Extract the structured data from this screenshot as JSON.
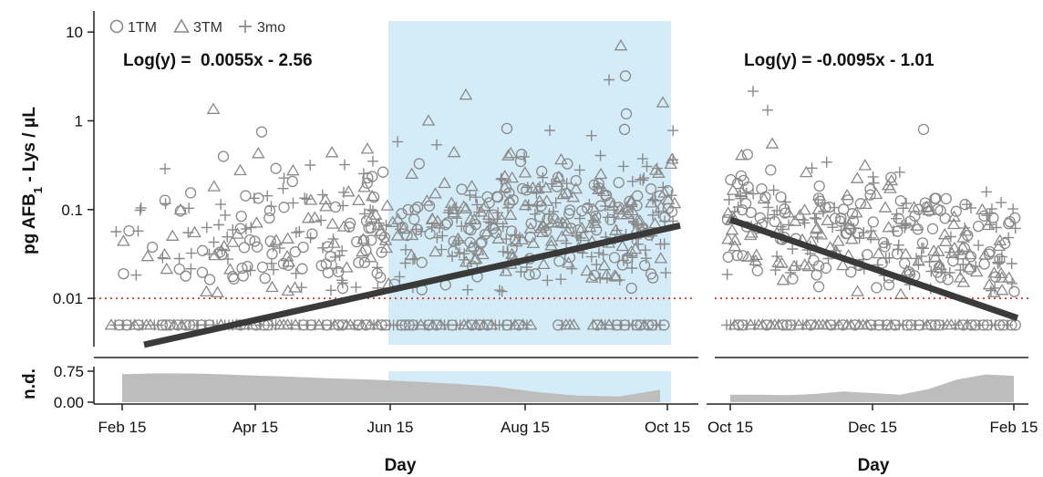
{
  "chart_data": {
    "type": "scatter",
    "ylabel_html": "pg AFB<tspan baseline-shift=\"sub\" font-size=\"13\">1</tspan> - Lys / μL",
    "ylabel": "pg AFB1 - Lys / μL",
    "nd_label": "n.d.",
    "legend": [
      "1TM",
      "3TM",
      "3mo"
    ],
    "colors": {
      "points": "#8a8a8a",
      "fit": "#3a3a3a",
      "lod": "#e0413a",
      "shade": "#d4ecf8",
      "area": "#bdbdbd",
      "axis": "#222222"
    },
    "y_scale": "log",
    "ylim": [
      0.003,
      15
    ],
    "y_ticks": [
      "0.01",
      "0.1",
      "1",
      "10"
    ],
    "lod": 0.01,
    "nd_value": 0.005,
    "nd_ticks": [
      "0.75",
      "0.00"
    ],
    "panels": [
      {
        "xlabel": "Day",
        "x_ticks": [
          "Feb 15",
          "Apr 15",
          "Jun 15",
          "Aug 15",
          "Oct 15"
        ],
        "equation": "Log(y) =  0.0055x - 2.56",
        "fit": {
          "x_start": "Feb 25",
          "x_end": "Oct 15",
          "y_start": 0.003,
          "y_end": 0.066
        },
        "shaded": [
          "Jun 15",
          "Oct 15"
        ],
        "nd_fraction": [
          0.68,
          0.7,
          0.69,
          0.65,
          0.62,
          0.58,
          0.55,
          0.5,
          0.45,
          0.38,
          0.25,
          0.16,
          0.14,
          0.3
        ]
      },
      {
        "xlabel": "Day",
        "x_ticks": [
          "Oct 15",
          "Dec 15",
          "Feb 15"
        ],
        "equation": "Log(y) = -0.0095x - 1.01",
        "fit": {
          "x_start": "Oct 15",
          "x_end": "Feb 15",
          "y_start": 0.077,
          "y_end": 0.006
        },
        "shaded": null,
        "nd_fraction": [
          0.18,
          0.18,
          0.17,
          0.2,
          0.26,
          0.22,
          0.18,
          0.32,
          0.55,
          0.67,
          0.64
        ]
      }
    ]
  }
}
